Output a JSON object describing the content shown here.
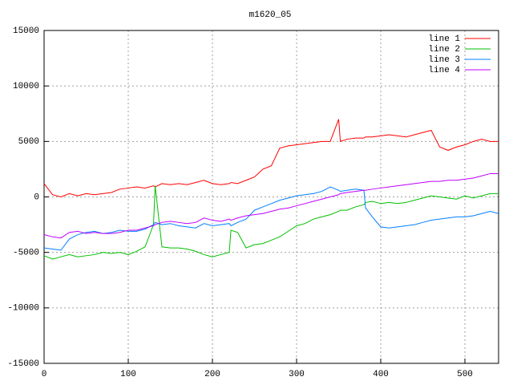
{
  "chart_data": {
    "type": "line",
    "title": "m1620_05",
    "x": [
      0,
      10,
      20,
      30,
      40,
      50,
      60,
      70,
      80,
      90,
      100,
      110,
      120,
      130,
      132,
      140,
      150,
      160,
      170,
      180,
      190,
      200,
      210,
      220,
      222,
      230,
      240,
      250,
      260,
      270,
      280,
      290,
      300,
      310,
      320,
      330,
      340,
      350,
      352,
      360,
      370,
      380,
      382,
      390,
      400,
      410,
      420,
      430,
      440,
      450,
      460,
      470,
      480,
      490,
      500,
      510,
      520,
      530,
      540
    ],
    "series": [
      {
        "name": "line 1",
        "color": "#ff0000",
        "values": [
          1200,
          200,
          0,
          300,
          100,
          300,
          200,
          300,
          400,
          700,
          800,
          900,
          800,
          1000,
          900,
          1200,
          1100,
          1200,
          1100,
          1300,
          1500,
          1200,
          1100,
          1200,
          1300,
          1200,
          1500,
          1800,
          2500,
          2800,
          4400,
          4600,
          4700,
          4800,
          4900,
          5000,
          5000,
          7000,
          5000,
          5200,
          5300,
          5300,
          5400,
          5400,
          5500,
          5600,
          5500,
          5400,
          5600,
          5800,
          6000,
          4500,
          4200,
          4500,
          4700,
          5000,
          5200,
          5000,
          5000
        ]
      },
      {
        "name": "line 2",
        "color": "#00c000",
        "values": [
          -5300,
          -5600,
          -5400,
          -5200,
          -5400,
          -5300,
          -5200,
          -5000,
          -5100,
          -5000,
          -5200,
          -4900,
          -4500,
          -2500,
          1000,
          -4500,
          -4600,
          -4600,
          -4700,
          -4900,
          -5200,
          -5400,
          -5200,
          -5000,
          -3000,
          -3200,
          -4600,
          -4300,
          -4200,
          -3900,
          -3600,
          -3100,
          -2600,
          -2400,
          -2000,
          -1800,
          -1600,
          -1300,
          -1200,
          -1200,
          -900,
          -700,
          -500,
          -400,
          -600,
          -500,
          -600,
          -500,
          -300,
          -100,
          100,
          0,
          -100,
          -200,
          100,
          -100,
          100,
          300,
          300
        ]
      },
      {
        "name": "line 3",
        "color": "#0080ff",
        "values": [
          -4600,
          -4700,
          -4800,
          -3800,
          -3400,
          -3200,
          -3100,
          -3300,
          -3200,
          -3000,
          -3100,
          -3100,
          -2900,
          -2500,
          -2300,
          -2500,
          -2400,
          -2600,
          -2700,
          -2800,
          -2400,
          -2600,
          -2500,
          -2400,
          -2600,
          -2300,
          -2000,
          -1200,
          -900,
          -600,
          -300,
          -100,
          100,
          200,
          300,
          500,
          900,
          600,
          500,
          600,
          700,
          600,
          -1000,
          -1800,
          -2700,
          -2800,
          -2700,
          -2600,
          -2500,
          -2300,
          -2100,
          -2000,
          -1900,
          -1800,
          -1800,
          -1700,
          -1500,
          -1300,
          -1500
        ]
      },
      {
        "name": "line 4",
        "color": "#c000ff",
        "values": [
          -3400,
          -3600,
          -3700,
          -3200,
          -3100,
          -3300,
          -3200,
          -3300,
          -3300,
          -3200,
          -3000,
          -3000,
          -2800,
          -2600,
          -2500,
          -2300,
          -2200,
          -2300,
          -2400,
          -2300,
          -1900,
          -2100,
          -2200,
          -2000,
          -2100,
          -1900,
          -1700,
          -1600,
          -1500,
          -1300,
          -1100,
          -1000,
          -800,
          -600,
          -400,
          -200,
          0,
          200,
          300,
          400,
          500,
          600,
          600,
          700,
          800,
          900,
          1000,
          1100,
          1200,
          1300,
          1400,
          1400,
          1500,
          1500,
          1600,
          1700,
          1900,
          2100,
          2100
        ]
      }
    ],
    "xlim": [
      0,
      540
    ],
    "ylim": [
      -15000,
      15000
    ],
    "xticks": [
      0,
      100,
      200,
      300,
      400,
      500
    ],
    "yticks": [
      -15000,
      -10000,
      -5000,
      0,
      5000,
      10000,
      15000
    ],
    "grid": true,
    "legend": "top-right"
  }
}
